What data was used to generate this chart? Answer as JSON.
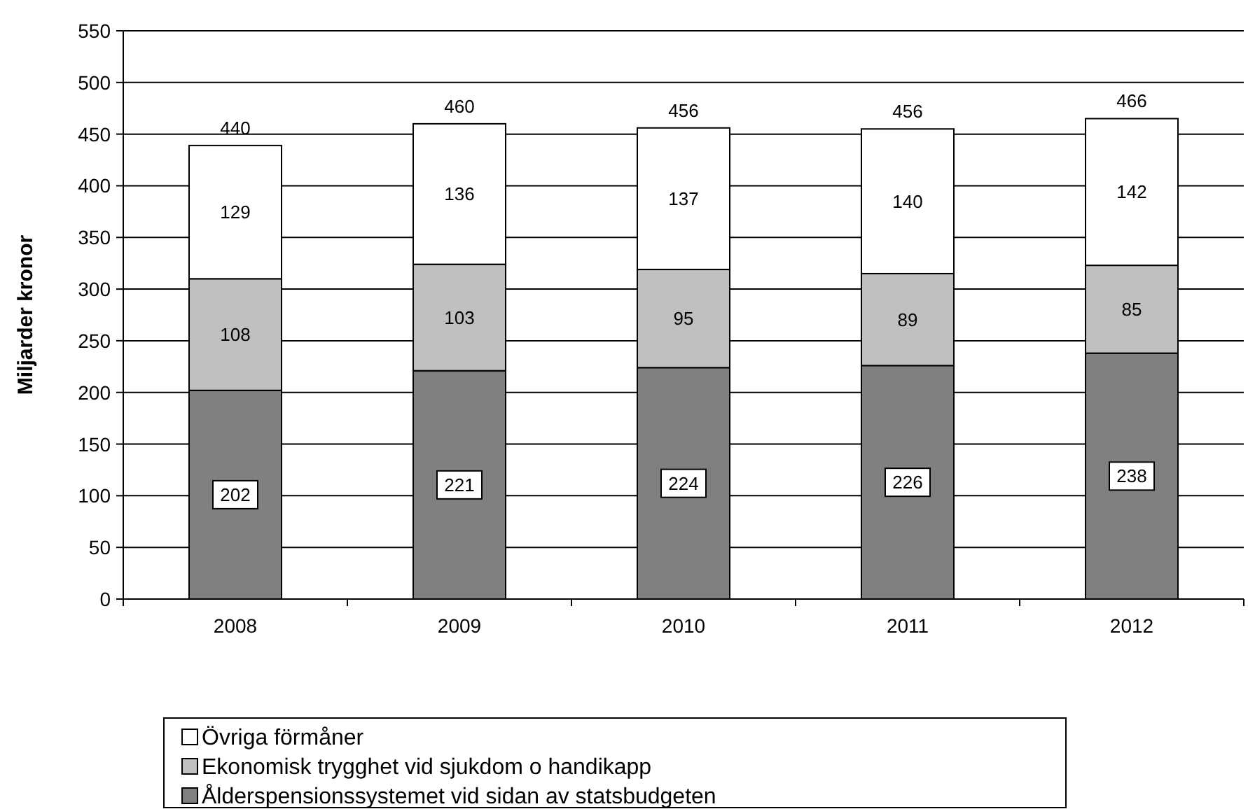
{
  "chart_data": {
    "type": "bar",
    "stacked": true,
    "ylabel": "Miljarder kronor",
    "categories": [
      "2008",
      "2009",
      "2010",
      "2011",
      "2012"
    ],
    "series": [
      {
        "name": "Ålderspensionssystemet vid sidan av statsbudgeten",
        "color": "#808080",
        "values": [
          202,
          221,
          224,
          226,
          238
        ]
      },
      {
        "name": "Ekonomisk trygghet vid sjukdom o handikapp",
        "color": "#c0c0c0",
        "values": [
          108,
          103,
          95,
          89,
          85
        ]
      },
      {
        "name": "Övriga förmåner",
        "color": "#ffffff",
        "values": [
          129,
          136,
          137,
          140,
          142
        ]
      }
    ],
    "ylim": [
      0,
      550
    ],
    "yticks": [
      0,
      50,
      100,
      150,
      200,
      250,
      300,
      350,
      400,
      450,
      500,
      550
    ],
    "grid": "y",
    "legend": "bottom",
    "data_labels": true,
    "totals": [
      "440",
      "460",
      "456",
      "456",
      "466"
    ]
  }
}
